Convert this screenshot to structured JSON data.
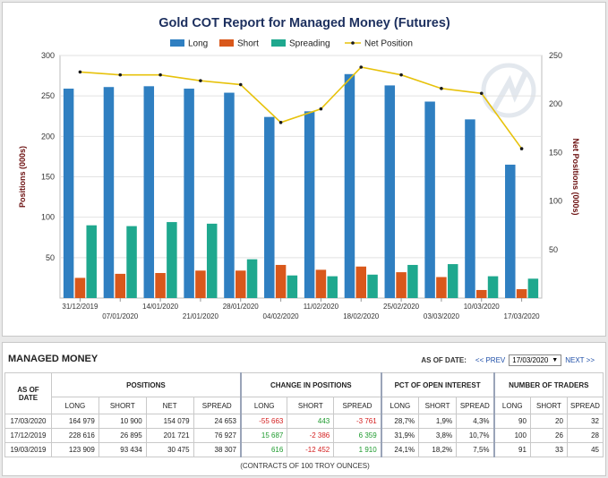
{
  "chart_data": {
    "type": "bar",
    "title": "Gold COT Report for Managed Money (Futures)",
    "ylabel": "Positions (000s)",
    "y2label": "Net Positions (000s)",
    "ylim": [
      0,
      300
    ],
    "y2lim": [
      0,
      250
    ],
    "yticks": [
      50,
      100,
      150,
      200,
      250,
      300
    ],
    "y2ticks": [
      50,
      100,
      150,
      200,
      250
    ],
    "categories": [
      "31/12/2019",
      "07/01/2020",
      "14/01/2020",
      "21/01/2020",
      "28/01/2020",
      "04/02/2020",
      "11/02/2020",
      "18/02/2020",
      "25/02/2020",
      "03/03/2020",
      "10/03/2020",
      "17/03/2020"
    ],
    "series": [
      {
        "name": "Long",
        "color": "#2f7fc1",
        "axis": "left",
        "type": "bar",
        "values": [
          259,
          261,
          262,
          259,
          254,
          224,
          231,
          277,
          263,
          243,
          221,
          165
        ]
      },
      {
        "name": "Short",
        "color": "#d9581b",
        "axis": "left",
        "type": "bar",
        "values": [
          25,
          30,
          31,
          34,
          34,
          41,
          35,
          39,
          32,
          26,
          10,
          11
        ]
      },
      {
        "name": "Spreading",
        "color": "#1fa88e",
        "axis": "left",
        "type": "bar",
        "values": [
          90,
          89,
          94,
          92,
          48,
          28,
          27,
          29,
          41,
          42,
          27,
          24
        ]
      },
      {
        "name": "Net Position",
        "color": "#e7c20b",
        "axis": "right",
        "type": "line",
        "values": [
          233,
          230,
          230,
          224,
          220,
          181,
          195,
          238,
          230,
          216,
          211,
          154
        ]
      }
    ],
    "legend": "top-center",
    "grid": true
  },
  "table": {
    "title": "MANAGED MONEY",
    "as_of_label": "AS OF DATE:",
    "prev_label": "<< PREV",
    "next_label": "NEXT >>",
    "selected_date": "17/03/2020",
    "as_of_header": "AS OF DATE",
    "groups": [
      "POSITIONS",
      "CHANGE IN POSITIONS",
      "PCT OF OPEN INTEREST",
      "NUMBER OF TRADERS"
    ],
    "positions_cols": [
      "LONG",
      "SHORT",
      "NET",
      "SPREAD"
    ],
    "change_cols": [
      "LONG",
      "SHORT",
      "SPREAD"
    ],
    "pct_cols": [
      "LONG",
      "SHORT",
      "SPREAD"
    ],
    "traders_cols": [
      "LONG",
      "SHORT",
      "SPREAD"
    ],
    "rows": [
      {
        "date": "17/03/2020",
        "positions": [
          "164 979",
          "10 900",
          "154 079",
          "24 653"
        ],
        "change": [
          {
            "v": "-55 663",
            "s": "neg"
          },
          {
            "v": "443",
            "s": "pos"
          },
          {
            "v": "-3 761",
            "s": "neg"
          }
        ],
        "pct": [
          "28,7%",
          "1,9%",
          "4,3%"
        ],
        "traders": [
          "90",
          "20",
          "32"
        ]
      },
      {
        "date": "17/12/2019",
        "positions": [
          "228 616",
          "26 895",
          "201 721",
          "76 927"
        ],
        "change": [
          {
            "v": "15 687",
            "s": "pos"
          },
          {
            "v": "-2 386",
            "s": "neg"
          },
          {
            "v": "6 359",
            "s": "pos"
          }
        ],
        "pct": [
          "31,9%",
          "3,8%",
          "10,7%"
        ],
        "traders": [
          "100",
          "26",
          "28"
        ]
      },
      {
        "date": "19/03/2019",
        "positions": [
          "123 909",
          "93 434",
          "30 475",
          "38 307"
        ],
        "change": [
          {
            "v": "616",
            "s": "pos"
          },
          {
            "v": "-12 452",
            "s": "neg"
          },
          {
            "v": "1 910",
            "s": "pos"
          }
        ],
        "pct": [
          "24,1%",
          "18,2%",
          "7,5%"
        ],
        "traders": [
          "91",
          "33",
          "45"
        ]
      }
    ],
    "note": "(CONTRACTS OF 100 TROY OUNCES)"
  },
  "colors": {
    "title": "#1c2f5e",
    "axis_title": "#6b0f0f",
    "grid": "#e2e2e2"
  }
}
